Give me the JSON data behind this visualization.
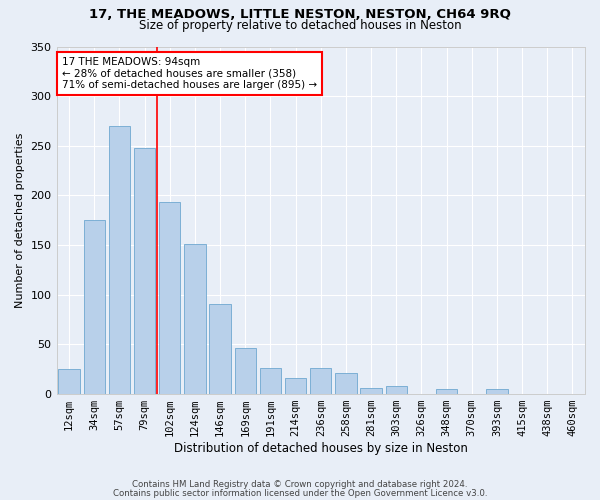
{
  "title1": "17, THE MEADOWS, LITTLE NESTON, NESTON, CH64 9RQ",
  "title2": "Size of property relative to detached houses in Neston",
  "xlabel": "Distribution of detached houses by size in Neston",
  "ylabel": "Number of detached properties",
  "categories": [
    "12sqm",
    "34sqm",
    "57sqm",
    "79sqm",
    "102sqm",
    "124sqm",
    "146sqm",
    "169sqm",
    "191sqm",
    "214sqm",
    "236sqm",
    "258sqm",
    "281sqm",
    "303sqm",
    "326sqm",
    "348sqm",
    "370sqm",
    "393sqm",
    "415sqm",
    "438sqm",
    "460sqm"
  ],
  "values": [
    25,
    175,
    270,
    248,
    193,
    151,
    91,
    46,
    26,
    16,
    26,
    21,
    6,
    8,
    0,
    5,
    0,
    5,
    0,
    0,
    0
  ],
  "bar_color": "#b8d0ea",
  "bar_edgecolor": "#6fa8d0",
  "marker_label1": "17 THE MEADOWS: 94sqm",
  "marker_label2": "← 28% of detached houses are smaller (358)",
  "marker_label3": "71% of semi-detached houses are larger (895) →",
  "annotation_box_color": "white",
  "annotation_box_edgecolor": "red",
  "vline_color": "red",
  "vline_x_index": 3.5,
  "footnote1": "Contains HM Land Registry data © Crown copyright and database right 2024.",
  "footnote2": "Contains public sector information licensed under the Open Government Licence v3.0.",
  "background_color": "#e8eef7",
  "plot_bg_color": "#e8eef7",
  "ylim": [
    0,
    340
  ],
  "yticks": [
    0,
    50,
    100,
    150,
    200,
    250,
    300,
    350
  ],
  "grid_color": "white",
  "title1_fontsize": 9.5,
  "title2_fontsize": 8.5,
  "xlabel_fontsize": 8.5,
  "ylabel_fontsize": 8.0,
  "tick_fontsize": 7.5,
  "annot_fontsize": 7.5
}
